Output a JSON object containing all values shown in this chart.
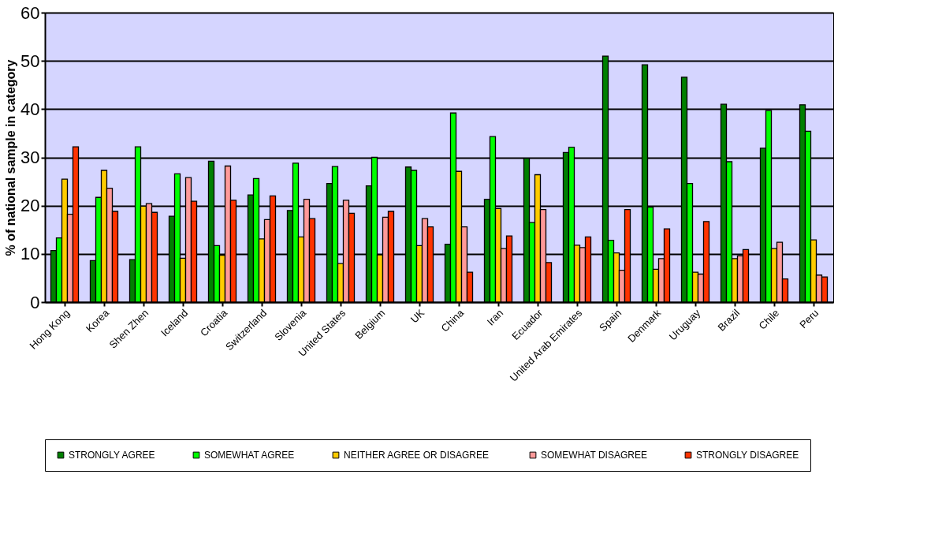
{
  "chart_data": {
    "type": "bar",
    "ylabel": "% of national sample in category",
    "categories": [
      "Hong Kong",
      "Korea",
      "Shen Zhen",
      "Iceland",
      "Croatia",
      "Switzerland",
      "Slovenia",
      "United States",
      "Belgium",
      "UK",
      "China",
      "Iran",
      "Ecuador",
      "United Arab Emirates",
      "Spain",
      "Denmark",
      "Uruguay",
      "Brazil",
      "Chile",
      "Peru"
    ],
    "series": [
      {
        "name": "STRONGLY AGREE",
        "color": "#008000",
        "values": [
          10.7,
          8.6,
          8.8,
          17.8,
          29.2,
          22.2,
          19.0,
          24.6,
          24.1,
          28.0,
          12.0,
          21.3,
          29.8,
          31.0,
          51.0,
          49.2,
          46.6,
          41.0,
          31.9,
          40.9
        ]
      },
      {
        "name": "SOMEWHAT AGREE",
        "color": "#00ff00",
        "values": [
          13.3,
          21.7,
          32.2,
          26.6,
          11.7,
          25.6,
          28.8,
          28.1,
          30.0,
          27.3,
          39.2,
          34.3,
          16.5,
          32.1,
          12.8,
          19.7,
          24.6,
          29.1,
          39.7,
          35.4
        ]
      },
      {
        "name": "NEITHER AGREE  OR DISAGREE",
        "color": "#ffcc00",
        "values": [
          25.5,
          27.3,
          19.9,
          9.1,
          9.7,
          13.1,
          13.5,
          8.0,
          9.8,
          11.7,
          27.1,
          19.4,
          26.4,
          11.8,
          10.2,
          6.8,
          6.2,
          9.0,
          11.1,
          12.9
        ]
      },
      {
        "name": "SOMEWHAT DISAGREE",
        "color": "#ff9999",
        "values": [
          18.2,
          23.6,
          20.4,
          25.8,
          28.2,
          17.1,
          21.3,
          21.1,
          17.6,
          17.3,
          15.6,
          11.1,
          19.2,
          11.3,
          6.6,
          9.0,
          5.8,
          9.6,
          12.4,
          5.6
        ]
      },
      {
        "name": "STRONGLY DISAGREE",
        "color": "#ff3300",
        "values": [
          32.2,
          18.8,
          18.6,
          20.9,
          21.1,
          22.0,
          17.3,
          18.4,
          18.8,
          15.6,
          6.2,
          13.7,
          8.2,
          13.5,
          19.2,
          15.2,
          16.7,
          10.9,
          4.8,
          5.2
        ]
      }
    ],
    "ylim": [
      0,
      60
    ],
    "yticks": [
      0,
      10,
      20,
      30,
      40,
      50,
      60
    ],
    "grid": "y",
    "legend": "bottom"
  }
}
